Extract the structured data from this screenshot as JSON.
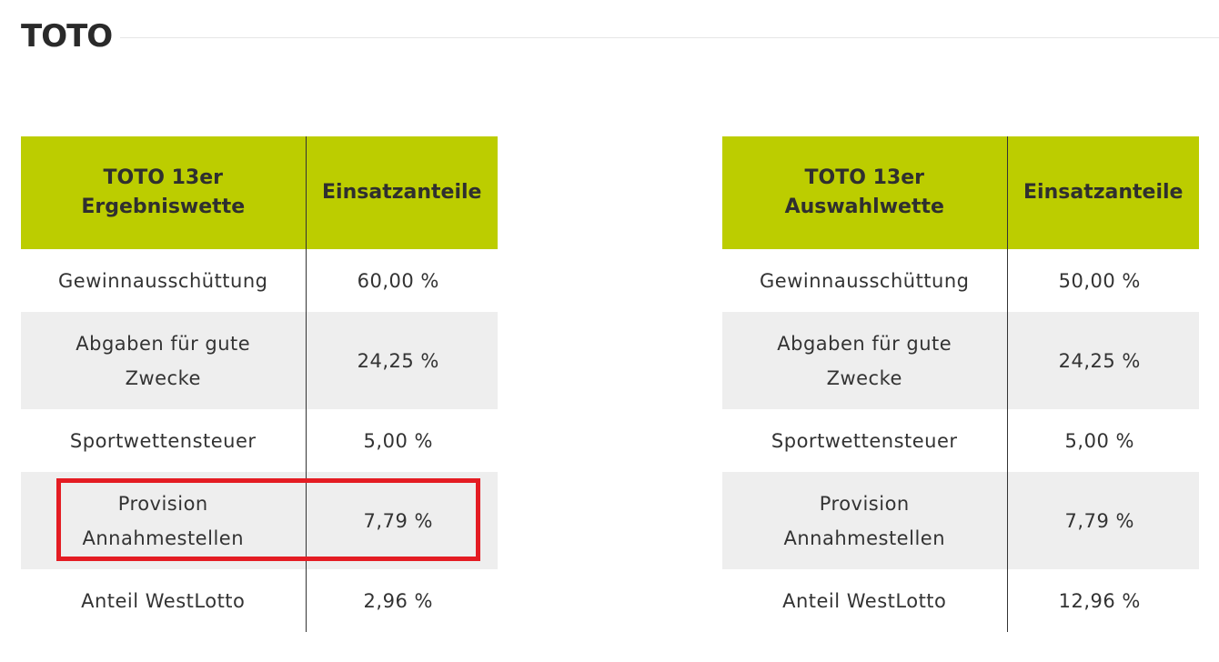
{
  "page": {
    "title": "TOTO"
  },
  "tables": [
    {
      "header": {
        "label_line1": "TOTO 13er",
        "label_line2": "Ergebniswette",
        "value": "Einsatzanteile"
      },
      "rows": [
        {
          "label_line1": "Gewinnausschüttung",
          "label_line2": "",
          "value": "60,00 %"
        },
        {
          "label_line1": "Abgaben für gute",
          "label_line2": "Zwecke",
          "value": "24,25 %"
        },
        {
          "label_line1": "Sportwettensteuer",
          "label_line2": "",
          "value": "5,00 %"
        },
        {
          "label_line1": "Provision",
          "label_line2": "Annahmestellen",
          "value": "7,79 %"
        },
        {
          "label_line1": "Anteil WestLotto",
          "label_line2": "",
          "value": "2,96 %"
        }
      ]
    },
    {
      "header": {
        "label_line1": "TOTO 13er",
        "label_line2": "Auswahlwette",
        "value": "Einsatzanteile"
      },
      "rows": [
        {
          "label_line1": "Gewinnausschüttung",
          "label_line2": "",
          "value": "50,00 %"
        },
        {
          "label_line1": "Abgaben für gute",
          "label_line2": "Zwecke",
          "value": "24,25 %"
        },
        {
          "label_line1": "Sportwettensteuer",
          "label_line2": "",
          "value": "5,00 %"
        },
        {
          "label_line1": "Provision",
          "label_line2": "Annahmestellen",
          "value": "7,79 %"
        },
        {
          "label_line1": "Anteil WestLotto",
          "label_line2": "",
          "value": "12,96 %"
        }
      ]
    }
  ],
  "colors": {
    "header_bg": "#bccd00",
    "stripe_bg": "#eeeeee",
    "highlight": "#e41c23"
  }
}
